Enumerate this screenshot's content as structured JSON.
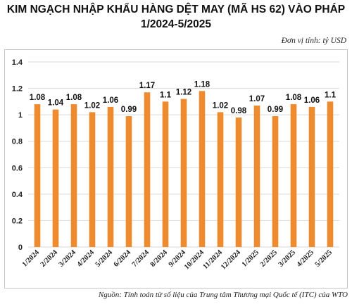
{
  "title_line1": "KIM NGẠCH NHẬP KHẨU HÀNG DỆT MAY (MÃ HS 62)  VÀO PHÁP",
  "title_line2": "1/2024-5/2025",
  "unit": "Đơn vị tính: tỷ USD",
  "source": "Nguồn: Tính toán từ số liệu của Trung tâm Thương mại Quốc tế (ITC) của WTO",
  "colors": {
    "bar": "#F08A2E",
    "grid": "#d9d9d9"
  },
  "chart_data": {
    "type": "bar",
    "title": "KIM NGẠCH NHẬP KHẨU HÀNG DỆT MAY (MÃ HS 62)  VÀO PHÁP 1/2024-5/2025",
    "categories": [
      "1/2024",
      "2/2024",
      "3/2024",
      "4/2024",
      "5/2024",
      "6/2024",
      "7/2024",
      "8/2024",
      "9/2024",
      "10/2024",
      "11/2024",
      "12/2024",
      "1/2025",
      "2/2025",
      "3/2025",
      "4/2025",
      "5/2025"
    ],
    "values": [
      1.08,
      1.04,
      1.08,
      1.02,
      1.06,
      0.99,
      1.17,
      1.1,
      1.12,
      1.18,
      1.02,
      0.98,
      1.07,
      0.99,
      1.08,
      1.06,
      1.1
    ],
    "value_labels": [
      "1.08",
      "1.04",
      "1.08",
      "1.02",
      "1.06",
      "0.99",
      "1.17",
      "1.1",
      "1.12",
      "1.18",
      "1.02",
      "0.98",
      "1.07",
      "0.99",
      "1.08",
      "1.06",
      "1.1"
    ],
    "y_ticks": [
      "0",
      "0.2",
      "0.4",
      "0.6",
      "0.8",
      "1",
      "1.2",
      "1.4"
    ],
    "ylim": [
      0,
      1.4
    ],
    "grid": true,
    "legend": "none"
  }
}
